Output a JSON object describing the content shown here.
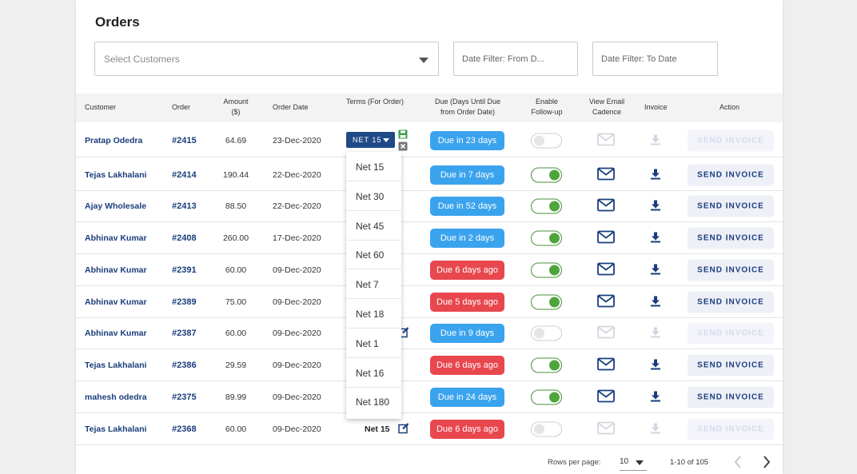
{
  "page": {
    "title": "Orders"
  },
  "filters": {
    "customers_placeholder": "Select Customers",
    "date_from_placeholder": "Date Filter: From D...",
    "date_to_placeholder": "Date Filter: To Date"
  },
  "table": {
    "headers": {
      "customer": "Customer",
      "order": "Order",
      "amount_l1": "Amount",
      "amount_l2": "($)",
      "order_date": "Order Date",
      "terms": "Terms (For Order)",
      "due_l1": "Due (Days Until Due",
      "due_l2": "from Order Date)",
      "followup_l1": "Enable",
      "followup_l2": "Follow-up",
      "cadence_l1": "View Email",
      "cadence_l2": "Cadence",
      "invoice": "Invoice",
      "action": "Action"
    },
    "rows": [
      {
        "customer": "Pratap Odedra",
        "order": "#2415",
        "amount": "64.69",
        "date": "23-Dec-2020",
        "terms": "",
        "due": "Due in 23 days",
        "due_status": "upcoming",
        "followup": false,
        "action": "SEND INVOICE",
        "enabled": false
      },
      {
        "customer": "Tejas Lakhalani",
        "order": "#2414",
        "amount": "190.44",
        "date": "22-Dec-2020",
        "terms": "",
        "due": "Due in 7 days",
        "due_status": "upcoming",
        "followup": true,
        "action": "SEND INVOICE",
        "enabled": true
      },
      {
        "customer": "Ajay Wholesale",
        "order": "#2413",
        "amount": "88.50",
        "date": "22-Dec-2020",
        "terms": "",
        "due": "Due in 52 days",
        "due_status": "upcoming",
        "followup": true,
        "action": "SEND INVOICE",
        "enabled": true
      },
      {
        "customer": "Abhinav Kumar",
        "order": "#2408",
        "amount": "260.00",
        "date": "17-Dec-2020",
        "terms": "",
        "due": "Due in 2 days",
        "due_status": "upcoming",
        "followup": true,
        "action": "SEND INVOICE",
        "enabled": true
      },
      {
        "customer": "Abhinav Kumar",
        "order": "#2391",
        "amount": "60.00",
        "date": "09-Dec-2020",
        "terms": "",
        "due": "Due 6 days ago",
        "due_status": "overdue",
        "followup": true,
        "action": "SEND INVOICE",
        "enabled": true
      },
      {
        "customer": "Abhinav Kumar",
        "order": "#2389",
        "amount": "75.00",
        "date": "09-Dec-2020",
        "terms": "",
        "due": "Due 5 days ago",
        "due_status": "overdue",
        "followup": true,
        "action": "SEND INVOICE",
        "enabled": true
      },
      {
        "customer": "Abhinav Kumar",
        "order": "#2387",
        "amount": "60.00",
        "date": "09-Dec-2020",
        "terms": "",
        "due": "Due in 9 days",
        "due_status": "upcoming",
        "followup": false,
        "action": "SEND INVOICE",
        "enabled": false
      },
      {
        "customer": "Tejas Lakhalani",
        "order": "#2386",
        "amount": "29.59",
        "date": "09-Dec-2020",
        "terms": "",
        "due": "Due 6 days ago",
        "due_status": "overdue",
        "followup": true,
        "action": "SEND INVOICE",
        "enabled": true
      },
      {
        "customer": "mahesh odedra",
        "order": "#2375",
        "amount": "89.99",
        "date": "09-Dec-2020",
        "terms": "",
        "due": "Due in 24 days",
        "due_status": "upcoming",
        "followup": true,
        "action": "SEND INVOICE",
        "enabled": true
      },
      {
        "customer": "Tejas Lakhalani",
        "order": "#2368",
        "amount": "60.00",
        "date": "09-Dec-2020",
        "terms": "Net 15",
        "due": "Due 6 days ago",
        "due_status": "overdue",
        "followup": false,
        "action": "SEND INVOICE",
        "enabled": false
      }
    ]
  },
  "terms_editor": {
    "selected": "NET 15",
    "options": [
      "Net 15",
      "Net 30",
      "Net 45",
      "Net 60",
      "Net 7",
      "Net 18",
      "Net 1",
      "Net 16",
      "Net 180"
    ]
  },
  "pagination": {
    "rows_per_page_label": "Rows per page:",
    "rows_per_page": "10",
    "range": "1-10 of 105"
  },
  "colors": {
    "brand_navy": "#1a3d7c",
    "due_upcoming": "#3aa3ee",
    "due_overdue": "#e8474e",
    "toggle_on": "#4ea63a"
  },
  "icons": [
    "caret-down-icon",
    "save-icon",
    "cancel-icon",
    "edit-icon",
    "mail-icon",
    "download-icon",
    "chevron-left-icon",
    "chevron-right-icon"
  ]
}
